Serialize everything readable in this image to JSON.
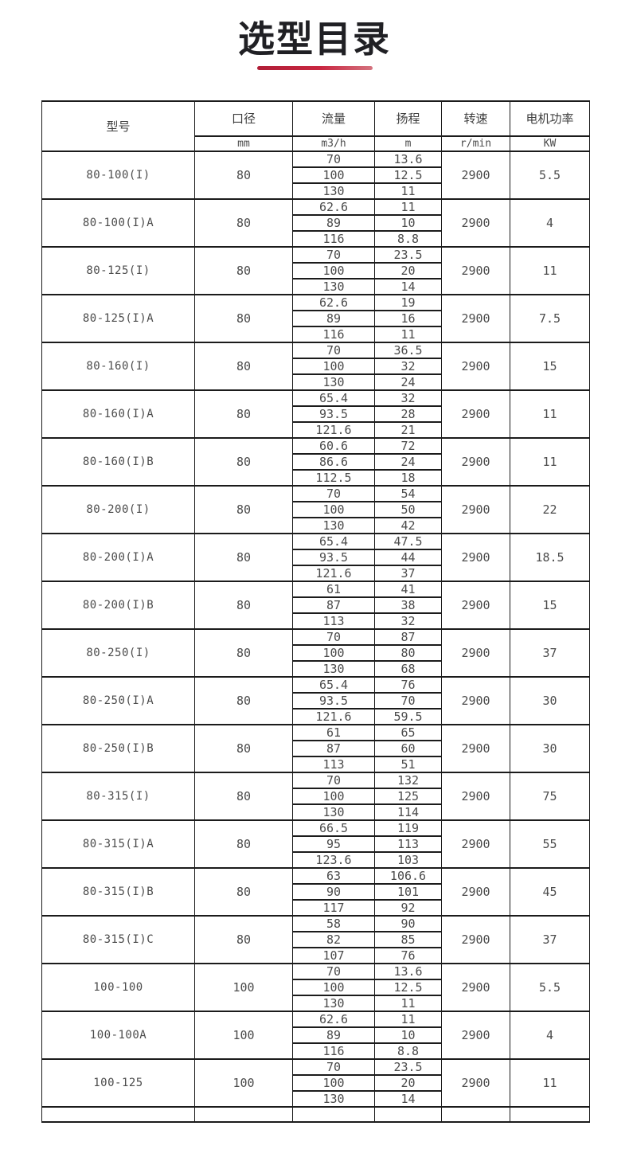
{
  "title": "选型目录",
  "accent_color": "#c92741",
  "table": {
    "columns": [
      {
        "label": "型号",
        "unit": ""
      },
      {
        "label": "口径",
        "unit": "mm"
      },
      {
        "label": "流量",
        "unit": "m3/h"
      },
      {
        "label": "扬程",
        "unit": "m"
      },
      {
        "label": "转速",
        "unit": "r/min"
      },
      {
        "label": "电机功率",
        "unit": "KW"
      }
    ],
    "rows": [
      {
        "model": "80-100(I)",
        "diameter": "80",
        "points": [
          {
            "flow": "70",
            "head": "13.6"
          },
          {
            "flow": "100",
            "head": "12.5"
          },
          {
            "flow": "130",
            "head": "11"
          }
        ],
        "speed": "2900",
        "power": "5.5"
      },
      {
        "model": "80-100(I)A",
        "diameter": "80",
        "points": [
          {
            "flow": "62.6",
            "head": "11"
          },
          {
            "flow": "89",
            "head": "10"
          },
          {
            "flow": "116",
            "head": "8.8"
          }
        ],
        "speed": "2900",
        "power": "4"
      },
      {
        "model": "80-125(I)",
        "diameter": "80",
        "points": [
          {
            "flow": "70",
            "head": "23.5"
          },
          {
            "flow": "100",
            "head": "20"
          },
          {
            "flow": "130",
            "head": "14"
          }
        ],
        "speed": "2900",
        "power": "11"
      },
      {
        "model": "80-125(I)A",
        "diameter": "80",
        "points": [
          {
            "flow": "62.6",
            "head": "19"
          },
          {
            "flow": "89",
            "head": "16"
          },
          {
            "flow": "116",
            "head": "11"
          }
        ],
        "speed": "2900",
        "power": "7.5"
      },
      {
        "model": "80-160(I)",
        "diameter": "80",
        "points": [
          {
            "flow": "70",
            "head": "36.5"
          },
          {
            "flow": "100",
            "head": "32"
          },
          {
            "flow": "130",
            "head": "24"
          }
        ],
        "speed": "2900",
        "power": "15"
      },
      {
        "model": "80-160(I)A",
        "diameter": "80",
        "points": [
          {
            "flow": "65.4",
            "head": "32"
          },
          {
            "flow": "93.5",
            "head": "28"
          },
          {
            "flow": "121.6",
            "head": "21"
          }
        ],
        "speed": "2900",
        "power": "11"
      },
      {
        "model": "80-160(I)B",
        "diameter": "80",
        "points": [
          {
            "flow": "60.6",
            "head": "72"
          },
          {
            "flow": "86.6",
            "head": "24"
          },
          {
            "flow": "112.5",
            "head": "18"
          }
        ],
        "speed": "2900",
        "power": "11"
      },
      {
        "model": "80-200(I)",
        "diameter": "80",
        "points": [
          {
            "flow": "70",
            "head": "54"
          },
          {
            "flow": "100",
            "head": "50"
          },
          {
            "flow": "130",
            "head": "42"
          }
        ],
        "speed": "2900",
        "power": "22"
      },
      {
        "model": "80-200(I)A",
        "diameter": "80",
        "points": [
          {
            "flow": "65.4",
            "head": "47.5"
          },
          {
            "flow": "93.5",
            "head": "44"
          },
          {
            "flow": "121.6",
            "head": "37"
          }
        ],
        "speed": "2900",
        "power": "18.5"
      },
      {
        "model": "80-200(I)B",
        "diameter": "80",
        "points": [
          {
            "flow": "61",
            "head": "41"
          },
          {
            "flow": "87",
            "head": "38"
          },
          {
            "flow": "113",
            "head": "32"
          }
        ],
        "speed": "2900",
        "power": "15"
      },
      {
        "model": "80-250(I)",
        "diameter": "80",
        "points": [
          {
            "flow": "70",
            "head": "87"
          },
          {
            "flow": "100",
            "head": "80"
          },
          {
            "flow": "130",
            "head": "68"
          }
        ],
        "speed": "2900",
        "power": "37"
      },
      {
        "model": "80-250(I)A",
        "diameter": "80",
        "points": [
          {
            "flow": "65.4",
            "head": "76"
          },
          {
            "flow": "93.5",
            "head": "70"
          },
          {
            "flow": "121.6",
            "head": "59.5"
          }
        ],
        "speed": "2900",
        "power": "30"
      },
      {
        "model": "80-250(I)B",
        "diameter": "80",
        "points": [
          {
            "flow": "61",
            "head": "65"
          },
          {
            "flow": "87",
            "head": "60"
          },
          {
            "flow": "113",
            "head": "51"
          }
        ],
        "speed": "2900",
        "power": "30"
      },
      {
        "model": "80-315(I)",
        "diameter": "80",
        "points": [
          {
            "flow": "70",
            "head": "132"
          },
          {
            "flow": "100",
            "head": "125"
          },
          {
            "flow": "130",
            "head": "114"
          }
        ],
        "speed": "2900",
        "power": "75"
      },
      {
        "model": "80-315(I)A",
        "diameter": "80",
        "points": [
          {
            "flow": "66.5",
            "head": "119"
          },
          {
            "flow": "95",
            "head": "113"
          },
          {
            "flow": "123.6",
            "head": "103"
          }
        ],
        "speed": "2900",
        "power": "55"
      },
      {
        "model": "80-315(I)B",
        "diameter": "80",
        "points": [
          {
            "flow": "63",
            "head": "106.6"
          },
          {
            "flow": "90",
            "head": "101"
          },
          {
            "flow": "117",
            "head": "92"
          }
        ],
        "speed": "2900",
        "power": "45"
      },
      {
        "model": "80-315(I)C",
        "diameter": "80",
        "points": [
          {
            "flow": "58",
            "head": "90"
          },
          {
            "flow": "82",
            "head": "85"
          },
          {
            "flow": "107",
            "head": "76"
          }
        ],
        "speed": "2900",
        "power": "37"
      },
      {
        "model": "100-100",
        "diameter": "100",
        "points": [
          {
            "flow": "70",
            "head": "13.6"
          },
          {
            "flow": "100",
            "head": "12.5"
          },
          {
            "flow": "130",
            "head": "11"
          }
        ],
        "speed": "2900",
        "power": "5.5"
      },
      {
        "model": "100-100A",
        "diameter": "100",
        "points": [
          {
            "flow": "62.6",
            "head": "11"
          },
          {
            "flow": "89",
            "head": "10"
          },
          {
            "flow": "116",
            "head": "8.8"
          }
        ],
        "speed": "2900",
        "power": "4"
      },
      {
        "model": "100-125",
        "diameter": "100",
        "points": [
          {
            "flow": "70",
            "head": "23.5"
          },
          {
            "flow": "100",
            "head": "20"
          },
          {
            "flow": "130",
            "head": "14"
          }
        ],
        "speed": "2900",
        "power": "11"
      }
    ]
  }
}
